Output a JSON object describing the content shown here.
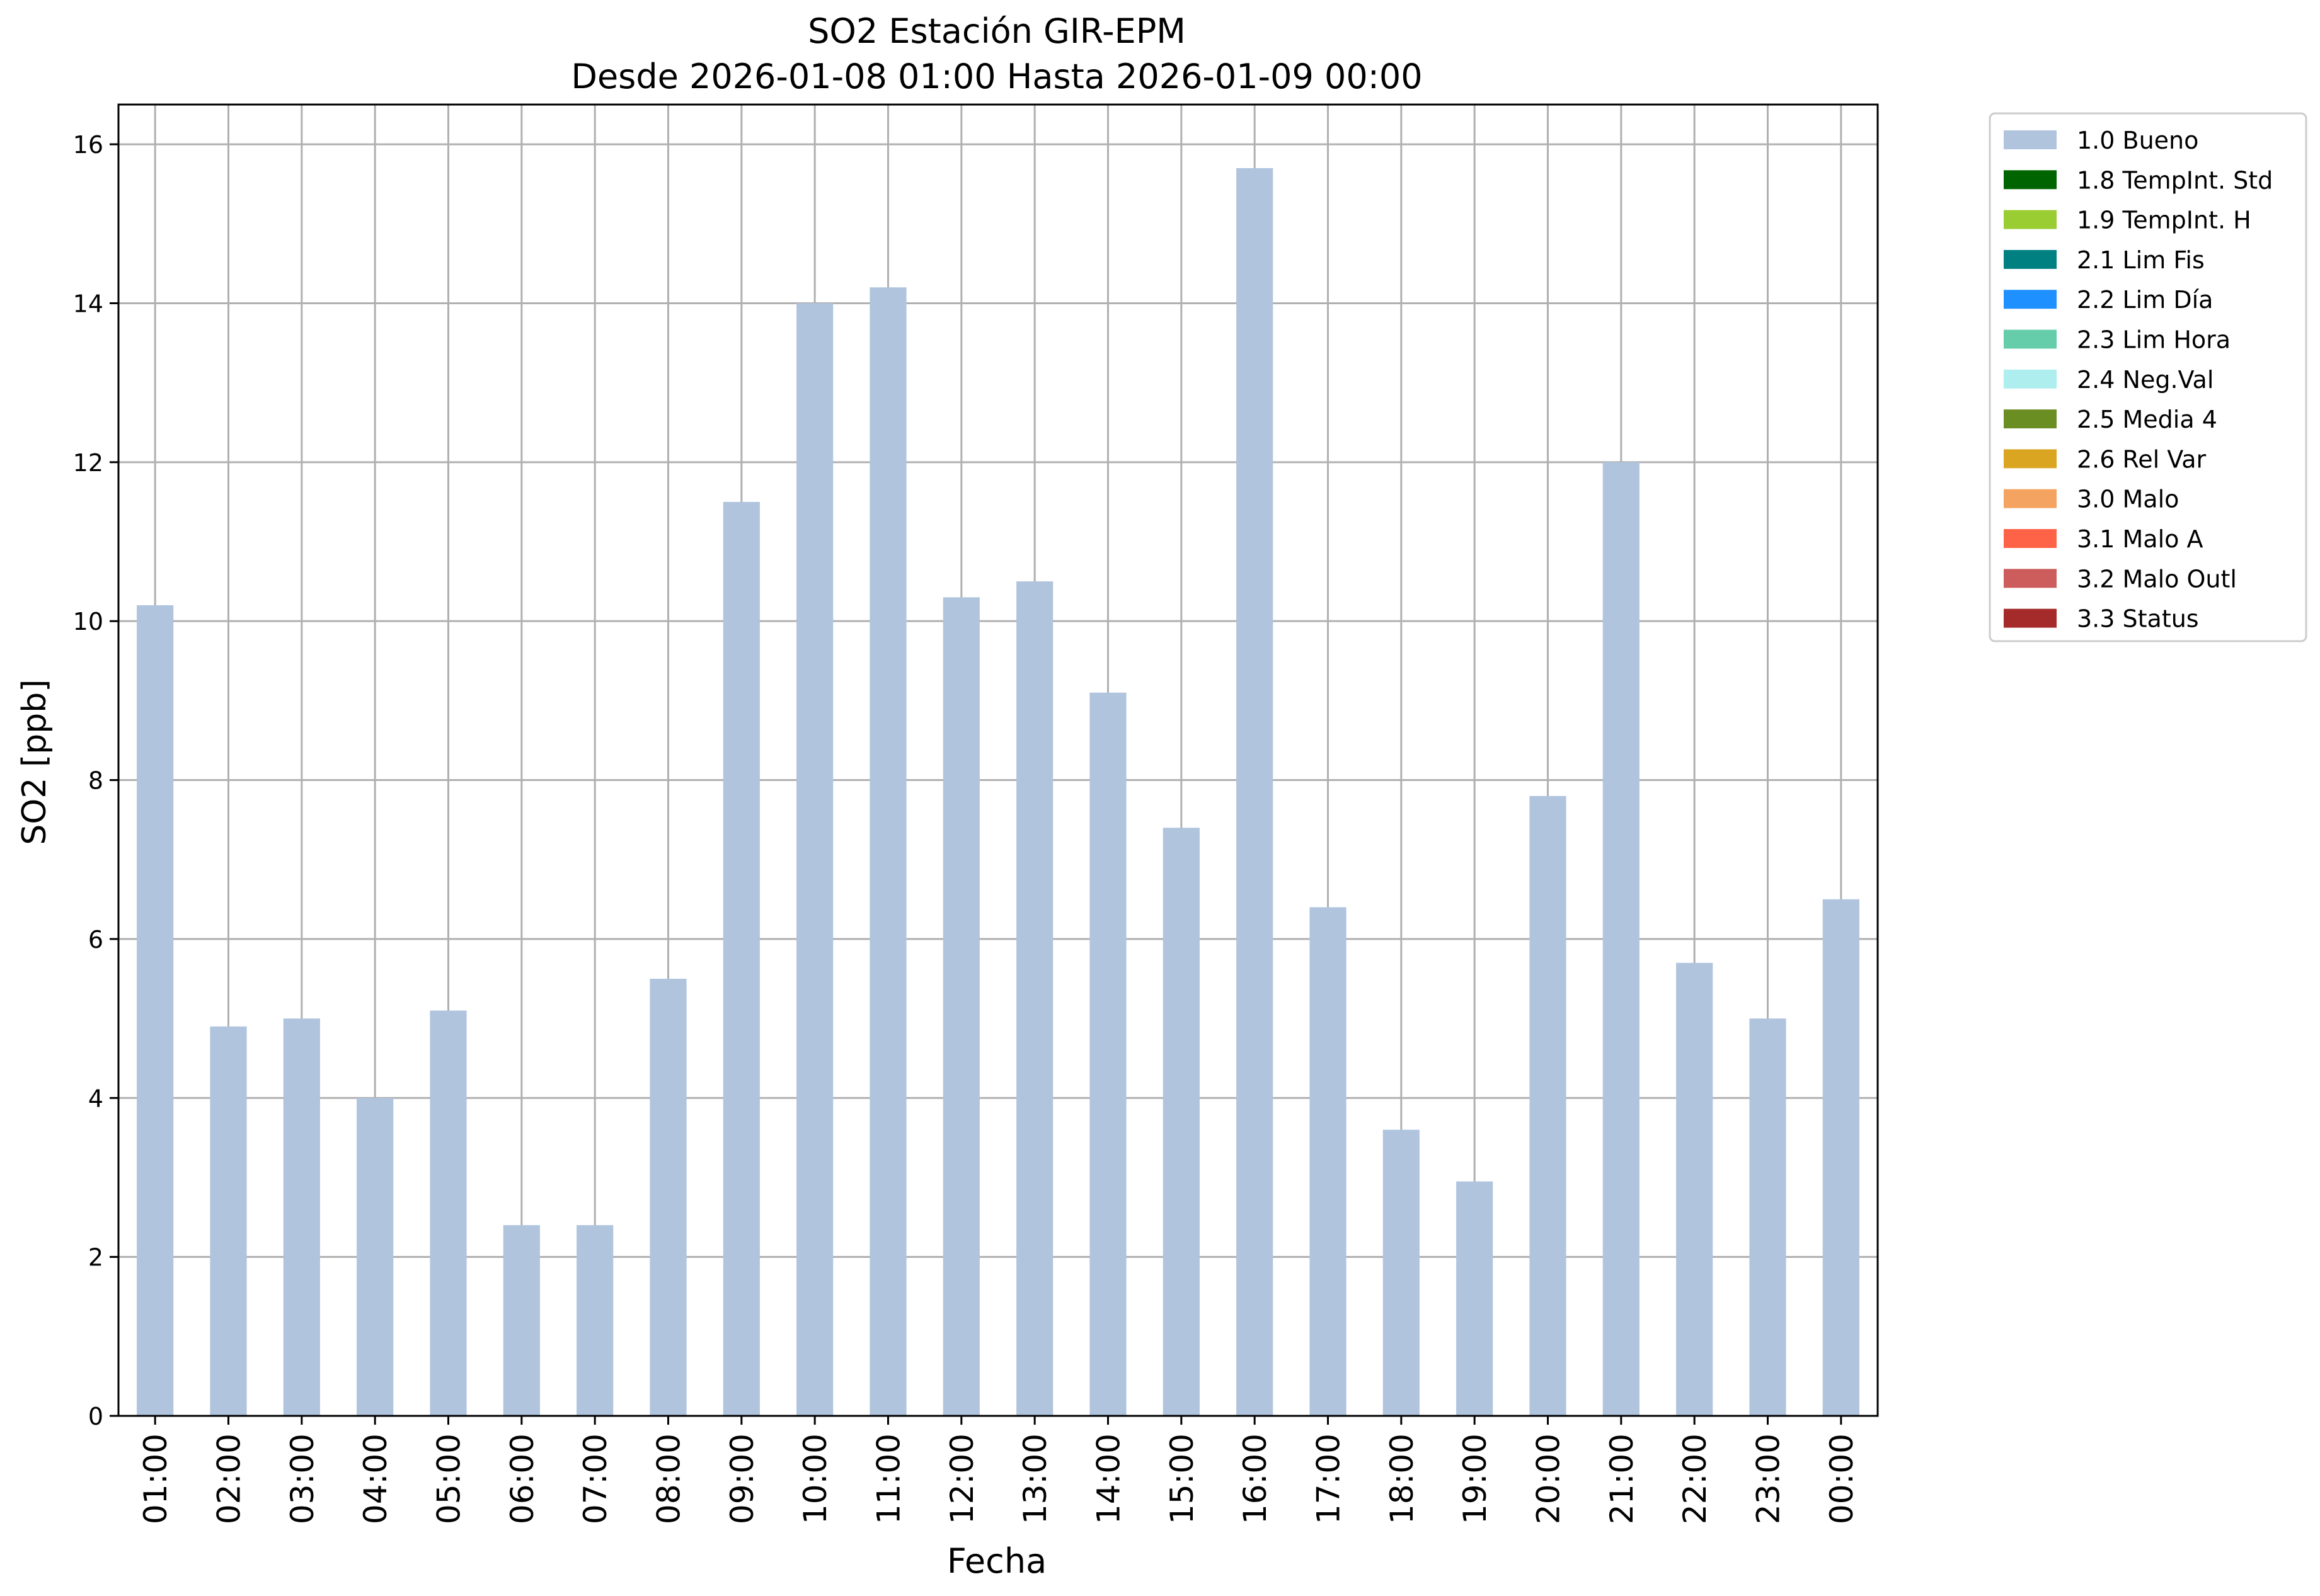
{
  "chart_data": {
    "type": "bar",
    "title": "SO2 Estación GIR-EPM",
    "subtitle": "Desde 2026-01-08 01:00 Hasta 2026-01-09 00:00",
    "xlabel": "Fecha",
    "ylabel": "SO2 [ppb]",
    "ylim": [
      0,
      16.5
    ],
    "yticks": [
      0,
      2,
      4,
      6,
      8,
      10,
      12,
      14,
      16
    ],
    "grid": true,
    "legend_position": "outside top-right",
    "categories": [
      "01:00",
      "02:00",
      "03:00",
      "04:00",
      "05:00",
      "06:00",
      "07:00",
      "08:00",
      "09:00",
      "10:00",
      "11:00",
      "12:00",
      "13:00",
      "14:00",
      "15:00",
      "16:00",
      "17:00",
      "18:00",
      "19:00",
      "20:00",
      "21:00",
      "22:00",
      "23:00",
      "00:00"
    ],
    "series": [
      {
        "name": "1.0 Bueno",
        "color": "#b0c4de",
        "values": [
          10.2,
          4.9,
          5.0,
          4.0,
          5.1,
          2.4,
          2.4,
          5.5,
          11.5,
          14.0,
          14.2,
          10.3,
          10.5,
          9.1,
          7.4,
          15.7,
          6.4,
          3.6,
          2.95,
          7.8,
          12.0,
          5.7,
          5.0,
          6.5
        ]
      }
    ],
    "legend": [
      {
        "label": "1.0 Bueno",
        "color": "#b0c4de"
      },
      {
        "label": "1.8 TempInt. Std",
        "color": "#006400"
      },
      {
        "label": "1.9 TempInt. H",
        "color": "#9acd32"
      },
      {
        "label": "2.1 Lim Fis",
        "color": "#008080"
      },
      {
        "label": "2.2 Lim Día",
        "color": "#1e90ff"
      },
      {
        "label": "2.3 Lim Hora",
        "color": "#66cdaa"
      },
      {
        "label": "2.4 Neg.Val",
        "color": "#afeeee"
      },
      {
        "label": "2.5 Media 4",
        "color": "#6b8e23"
      },
      {
        "label": "2.6 Rel Var",
        "color": "#daa520"
      },
      {
        "label": "3.0 Malo",
        "color": "#f4a460"
      },
      {
        "label": "3.1 Malo A",
        "color": "#ff6347"
      },
      {
        "label": "3.2 Malo Outl",
        "color": "#cd5c5c"
      },
      {
        "label": "3.3 Status",
        "color": "#a52a2a"
      }
    ]
  }
}
